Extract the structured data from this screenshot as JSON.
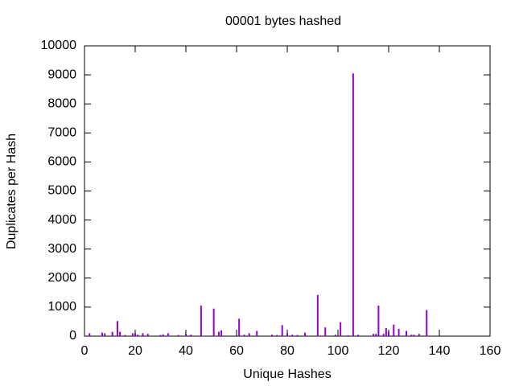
{
  "chart_data": {
    "type": "impulses",
    "title": "00001 bytes hashed",
    "xlabel": "Unique Hashes",
    "ylabel": "Duplicates per Hash",
    "color": "#9400d3",
    "x": [
      2,
      7,
      8,
      11,
      13,
      14,
      16,
      19,
      20,
      21,
      23,
      25,
      30,
      31,
      33,
      37,
      40,
      42,
      46,
      51,
      53,
      54,
      61,
      63,
      65,
      68,
      74,
      76,
      78,
      80,
      82,
      84,
      87,
      92,
      95,
      99,
      101,
      104,
      106,
      108,
      114,
      115,
      116,
      118,
      119,
      120,
      122,
      124,
      127,
      129,
      130,
      132,
      135
    ],
    "values": [
      100,
      120,
      100,
      150,
      520,
      150,
      40,
      100,
      100,
      50,
      100,
      80,
      40,
      60,
      100,
      40,
      80,
      50,
      1050,
      950,
      150,
      200,
      600,
      50,
      100,
      180,
      50,
      40,
      380,
      100,
      50,
      40,
      120,
      1420,
      300,
      50,
      480,
      30,
      9050,
      50,
      80,
      80,
      1050,
      80,
      280,
      150,
      400,
      250,
      180,
      50,
      50,
      80,
      900
    ],
    "xlim": [
      0,
      160
    ],
    "xticks": [
      0,
      20,
      40,
      60,
      80,
      100,
      120,
      140,
      160
    ],
    "ylim": [
      0,
      10000
    ],
    "yticks": [
      0,
      1000,
      2000,
      3000,
      4000,
      5000,
      6000,
      7000,
      8000,
      9000,
      10000
    ]
  }
}
